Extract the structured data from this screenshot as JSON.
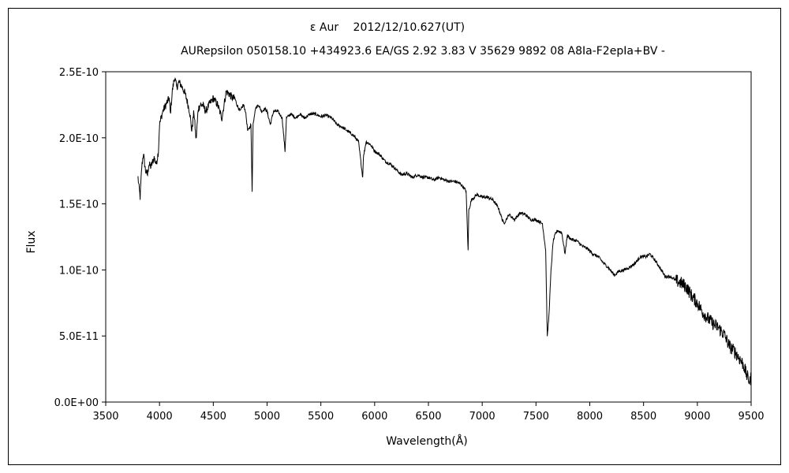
{
  "chart_data": {
    "type": "line",
    "title": "ε Aur　 2012/12/10.627(UT)",
    "subtitle": "AURepsilon 050158.10 +434923.6 EA/GS 2.92 3.83 V 35629 9892 08 A8Ia-F2epIa+BV -",
    "xlabel": "Wavelength(Å)",
    "ylabel": "Flux",
    "xlim": [
      3500,
      9500
    ],
    "ylim": [
      0,
      2.5e-10
    ],
    "xticks": [
      3500,
      4000,
      4500,
      5000,
      5500,
      6000,
      6500,
      7000,
      7500,
      8000,
      8500,
      9000,
      9500
    ],
    "xtick_labels": [
      "3500",
      "4000",
      "4500",
      "5000",
      "5500",
      "6000",
      "6500",
      "7000",
      "7500",
      "8000",
      "8500",
      "9000",
      "9500"
    ],
    "yticks": [
      0,
      5e-11,
      1e-10,
      1.5e-10,
      2e-10,
      2.5e-10
    ],
    "ytick_labels": [
      "0.0E+00",
      "5.0E-11",
      "1.0E-10",
      "1.5E-10",
      "2.0E-10",
      "2.5E-10"
    ],
    "grid": false,
    "legend": "none",
    "line_color": "#000000",
    "series": [
      {
        "x": [
          3800,
          3810,
          3820,
          3835,
          3850,
          3870,
          3889,
          3900,
          3920,
          3950,
          3970,
          3990,
          4000,
          4030,
          4060,
          4090,
          4101,
          4120,
          4140,
          4160,
          4180,
          4200,
          4230,
          4250,
          4280,
          4300,
          4320,
          4340,
          4360,
          4380,
          4400,
          4430,
          4460,
          4500,
          4540,
          4580,
          4620,
          4650,
          4680,
          4700,
          4720,
          4750,
          4780,
          4800,
          4820,
          4850,
          4861,
          4870,
          4890,
          4920,
          4950,
          4980,
          5000,
          5030,
          5060,
          5100,
          5140,
          5167,
          5180,
          5220,
          5270,
          5300,
          5350,
          5400,
          5450,
          5500,
          5550,
          5600,
          5650,
          5700,
          5750,
          5800,
          5850,
          5889,
          5895,
          5920,
          5960,
          6000,
          6050,
          6100,
          6150,
          6200,
          6250,
          6300,
          6350,
          6400,
          6450,
          6500,
          6550,
          6600,
          6650,
          6700,
          6750,
          6800,
          6850,
          6869,
          6875,
          6900,
          6950,
          7000,
          7050,
          7100,
          7150,
          7200,
          7250,
          7300,
          7350,
          7400,
          7450,
          7500,
          7560,
          7590,
          7605,
          7620,
          7640,
          7660,
          7680,
          7700,
          7740,
          7770,
          7790,
          7830,
          7880,
          7930,
          7980,
          8030,
          8080,
          8130,
          8170,
          8200,
          8230,
          8270,
          8320,
          8370,
          8420,
          8470,
          8520,
          8560,
          8600,
          8650,
          8700,
          8750,
          8800,
          8850,
          8900,
          8950,
          9000,
          9050,
          9100,
          9150,
          9200,
          9250,
          9300,
          9350,
          9400,
          9430,
          9460,
          9490,
          9500
        ],
        "values": [
          1.7e-10,
          1.62e-10,
          1.55e-10,
          1.78e-10,
          1.88e-10,
          1.75e-10,
          1.72e-10,
          1.8e-10,
          1.78e-10,
          1.85e-10,
          1.8e-10,
          1.9e-10,
          2.1e-10,
          2.2e-10,
          2.25e-10,
          2.3e-10,
          2.18e-10,
          2.36e-10,
          2.46e-10,
          2.38e-10,
          2.42e-10,
          2.4e-10,
          2.35e-10,
          2.3e-10,
          2.2e-10,
          2.05e-10,
          2.2e-10,
          1.98e-10,
          2.22e-10,
          2.25e-10,
          2.25e-10,
          2.2e-10,
          2.25e-10,
          2.3e-10,
          2.25e-10,
          2.15e-10,
          2.35e-10,
          2.33e-10,
          2.3e-10,
          2.3e-10,
          2.25e-10,
          2.2e-10,
          2.25e-10,
          2.2e-10,
          2.05e-10,
          2.1e-10,
          1.6e-10,
          2.1e-10,
          2.22e-10,
          2.25e-10,
          2.2e-10,
          2.22e-10,
          2.2e-10,
          2.1e-10,
          2.2e-10,
          2.2e-10,
          2.15e-10,
          1.9e-10,
          2.15e-10,
          2.18e-10,
          2.15e-10,
          2.18e-10,
          2.15e-10,
          2.18e-10,
          2.18e-10,
          2.16e-10,
          2.17e-10,
          2.15e-10,
          2.1e-10,
          2.08e-10,
          2.05e-10,
          2.02e-10,
          1.97e-10,
          1.7e-10,
          1.85e-10,
          1.97e-10,
          1.95e-10,
          1.9e-10,
          1.87e-10,
          1.82e-10,
          1.8e-10,
          1.76e-10,
          1.72e-10,
          1.73e-10,
          1.7e-10,
          1.72e-10,
          1.7e-10,
          1.7e-10,
          1.68e-10,
          1.7e-10,
          1.68e-10,
          1.67e-10,
          1.67e-10,
          1.65e-10,
          1.6e-10,
          1.14e-10,
          1.45e-10,
          1.53e-10,
          1.57e-10,
          1.55e-10,
          1.55e-10,
          1.53e-10,
          1.47e-10,
          1.35e-10,
          1.42e-10,
          1.38e-10,
          1.43e-10,
          1.42e-10,
          1.38e-10,
          1.38e-10,
          1.35e-10,
          1.15e-10,
          4.9e-11,
          6.5e-11,
          1e-10,
          1.22e-10,
          1.27e-10,
          1.3e-10,
          1.28e-10,
          1.12e-10,
          1.26e-10,
          1.23e-10,
          1.22e-10,
          1.18e-10,
          1.16e-10,
          1.12e-10,
          1.1e-10,
          1.05e-10,
          1.02e-10,
          9.9e-11,
          9.6e-11,
          9.9e-11,
          1e-10,
          1.02e-10,
          1.05e-10,
          1.1e-10,
          1.1e-10,
          1.12e-10,
          1.08e-10,
          1.02e-10,
          9.5e-11,
          9.5e-11,
          9.2e-11,
          9e-11,
          8.7e-11,
          8e-11,
          7.5e-11,
          6.8e-11,
          6.3e-11,
          5.9e-11,
          5.6e-11,
          5.1e-11,
          4.2e-11,
          3.8e-11,
          3.2e-11,
          2.8e-11,
          2e-11,
          1.5e-11,
          2.3e-11
        ]
      }
    ]
  }
}
